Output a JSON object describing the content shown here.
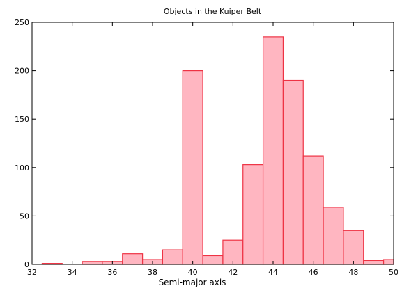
{
  "chart_data": {
    "type": "bar",
    "title": "Objects in the Kuiper Belt",
    "xlabel": "Semi-major axis",
    "ylabel": "",
    "xlim": [
      32,
      50
    ],
    "ylim": [
      0,
      250
    ],
    "bin_width": 1,
    "bin_centers": [
      33,
      34,
      35,
      36,
      37,
      38,
      39,
      40,
      41,
      42,
      43,
      44,
      45,
      46,
      47,
      48,
      49,
      50
    ],
    "values": [
      1,
      0,
      3,
      3,
      11,
      5,
      15,
      200,
      9,
      25,
      103,
      235,
      190,
      112,
      59,
      35,
      4,
      5
    ],
    "xticks": [
      "32",
      "34",
      "36",
      "38",
      "40",
      "42",
      "44",
      "46",
      "48",
      "50"
    ],
    "yticks": [
      "0",
      "50",
      "100",
      "150",
      "200",
      "250"
    ],
    "grid": false,
    "colors": {
      "fill": "#ffb6c1",
      "edge": "#ee3344"
    }
  }
}
